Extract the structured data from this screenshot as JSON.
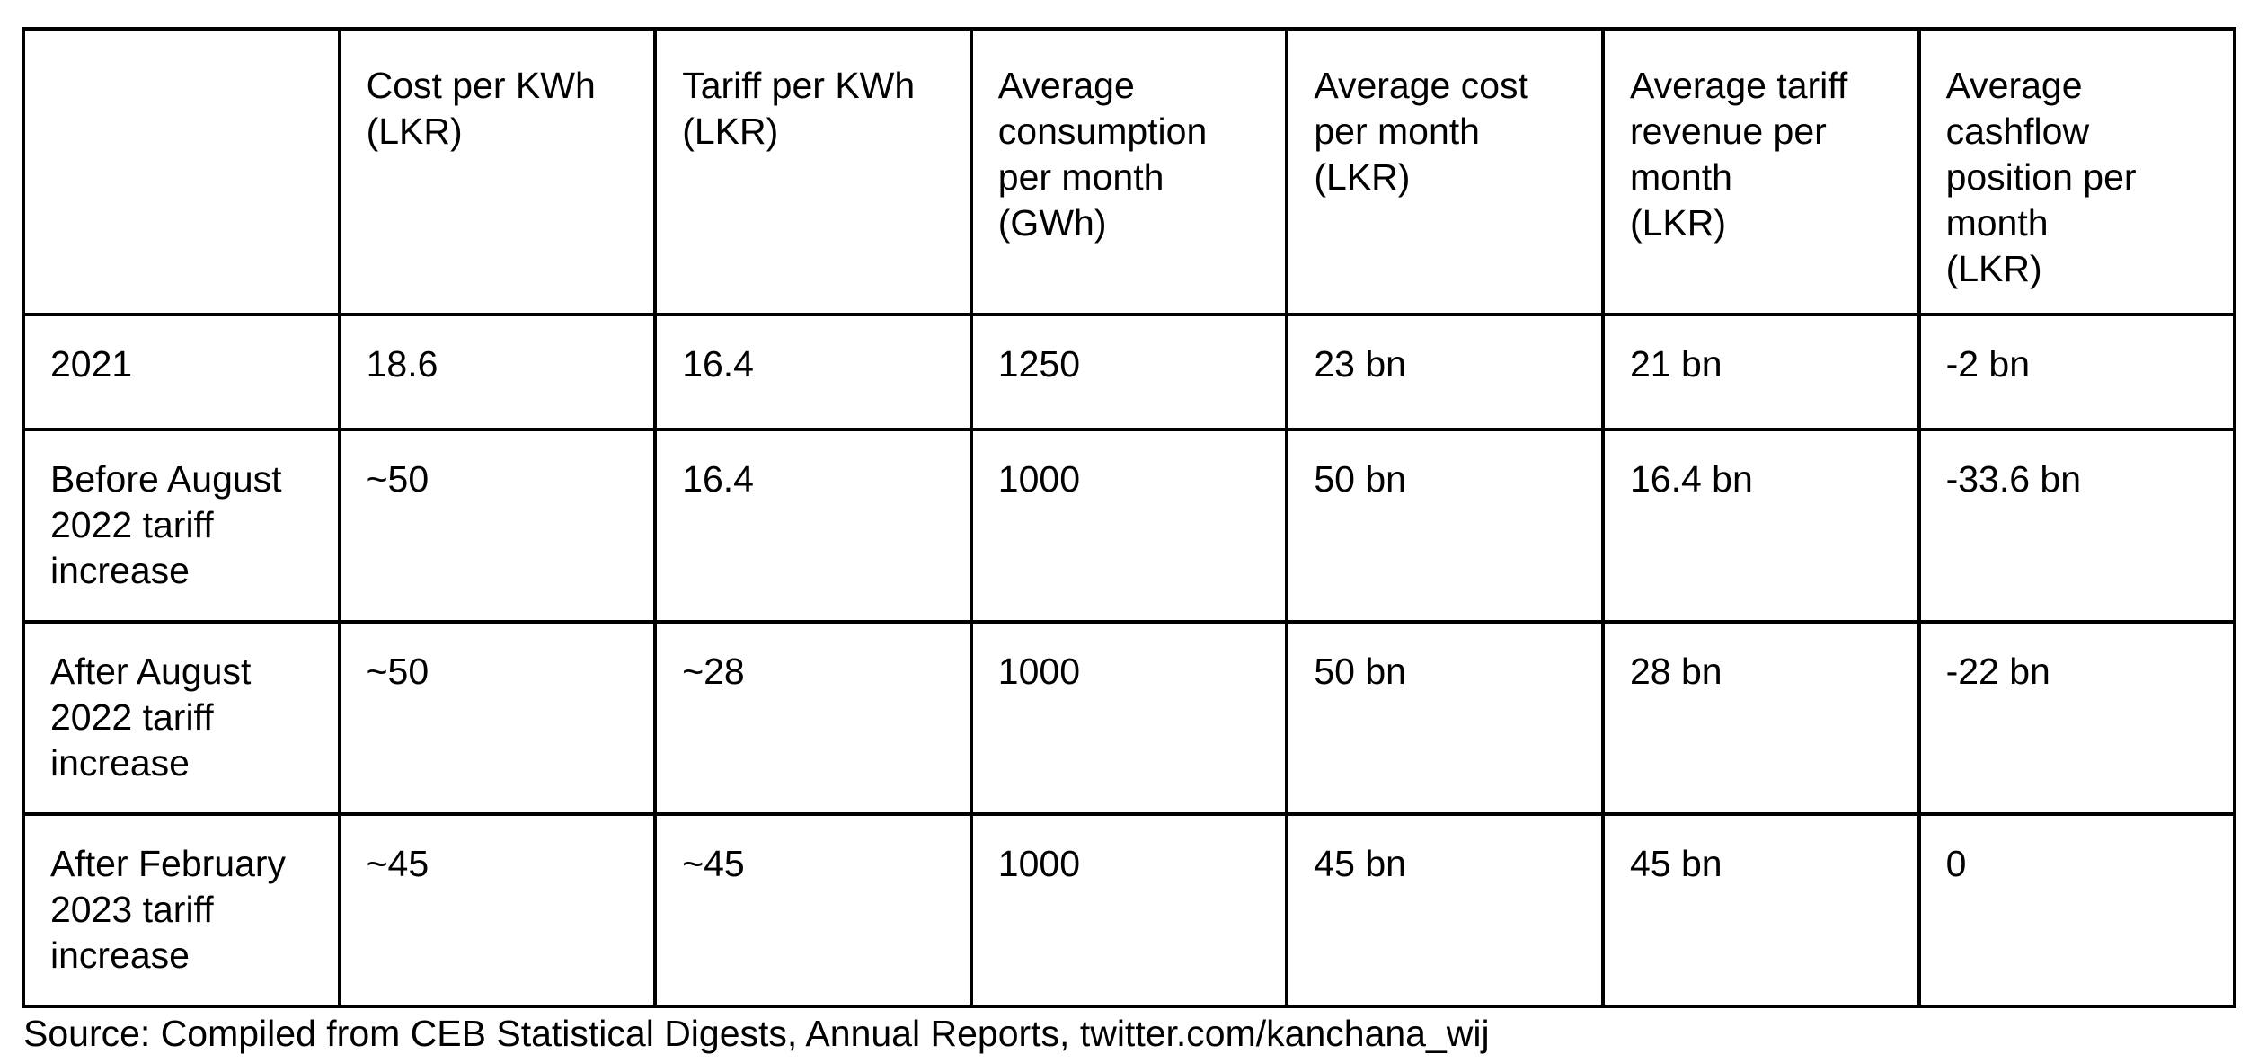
{
  "table": {
    "headers": [
      "",
      "Cost per KWh\n(LKR)",
      "Tariff per KWh\n(LKR)",
      "Average\nconsumption\nper month\n(GWh)",
      "Average cost\nper month\n(LKR)",
      "Average tariff\nrevenue per\nmonth\n(LKR)",
      "Average\ncashflow\nposition per\nmonth\n(LKR)"
    ],
    "rows": [
      [
        "2021",
        "18.6",
        "16.4",
        "1250",
        "23 bn",
        "21 bn",
        "-2 bn"
      ],
      [
        "Before August\n2022 tariff\nincrease",
        "~50",
        "16.4",
        "1000",
        "50 bn",
        "16.4 bn",
        "-33.6 bn"
      ],
      [
        "After August\n2022 tariff\nincrease",
        "~50",
        "~28",
        "1000",
        "50 bn",
        "28 bn",
        "-22 bn"
      ],
      [
        "After February\n2023 tariff\nincrease",
        "~45",
        "~45",
        "1000",
        "45 bn",
        "45 bn",
        "0"
      ]
    ]
  },
  "source": "Source: Compiled from CEB Statistical Digests, Annual Reports, twitter.com/kanchana_wij"
}
